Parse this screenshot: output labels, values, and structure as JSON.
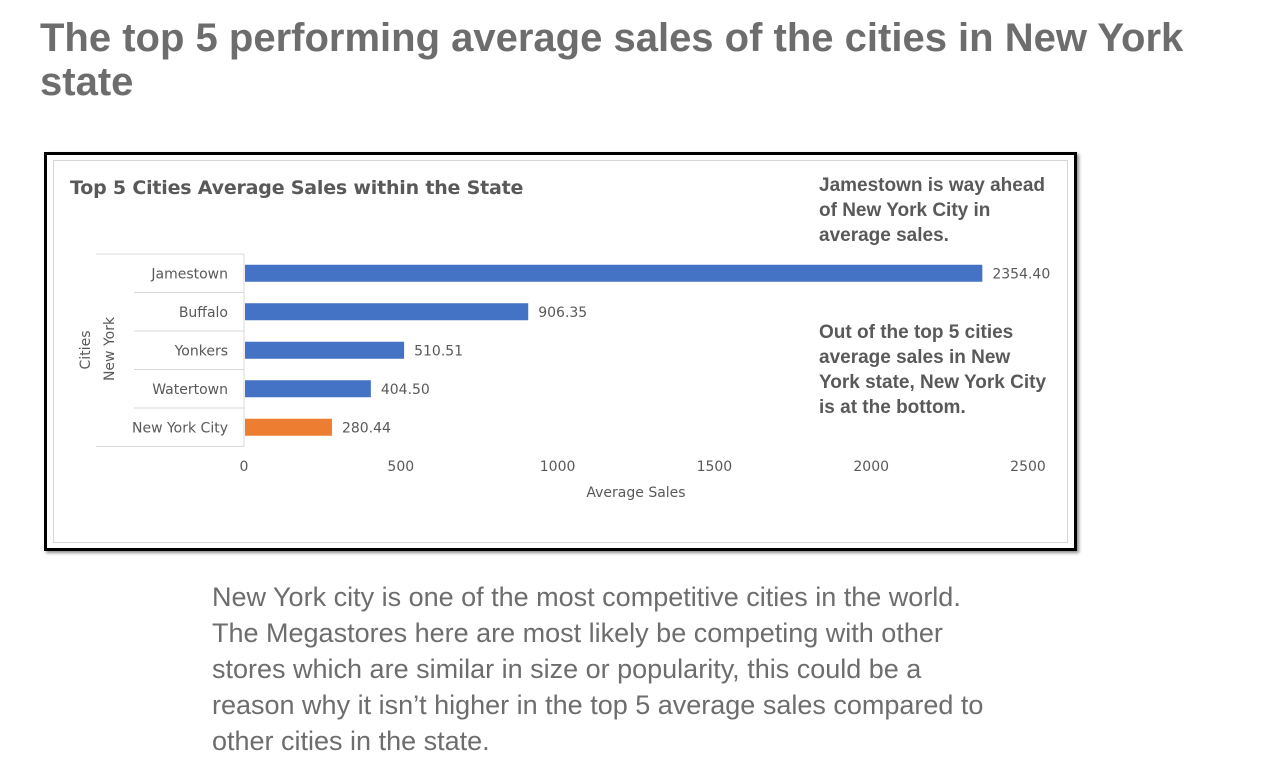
{
  "slide": {
    "title": "The top 5 performing average sales of the cities in New York state",
    "body": "New York city is one of the most competitive cities in the world. The Megastores here are most likely be competing with other stores which are similar in size or popularity, this could be a reason why it isn’t higher in the top 5 average sales compared to other cities in the state."
  },
  "annotations": {
    "top": "Jamestown is way ahead of New York City in average sales.",
    "bottom": "Out of the top 5 cities average sales in New York state, New York City is at the bottom."
  },
  "chart_data": {
    "type": "bar",
    "orientation": "horizontal",
    "title": "Top 5 Cities Average Sales within the State",
    "xlabel": "Average Sales",
    "ylabel_outer": "Cities",
    "ylabel_inner": "New York",
    "categories": [
      "Jamestown",
      "Buffalo",
      "Yonkers",
      "Watertown",
      "New York City"
    ],
    "values": [
      2354.4,
      906.35,
      510.51,
      404.5,
      280.44
    ],
    "data_labels": [
      "2354.40",
      "906.35",
      "510.51",
      "404.50",
      "280.44"
    ],
    "xlim": [
      0,
      2500
    ],
    "xticks": [
      0,
      500,
      1000,
      1500,
      2000,
      2500
    ],
    "grid": false,
    "legend": "none",
    "colors": {
      "default": "#4472c4",
      "highlight": "#ed7d31",
      "highlight_category": "New York City",
      "text": "#595959",
      "axis": "#d9d9d9"
    }
  }
}
